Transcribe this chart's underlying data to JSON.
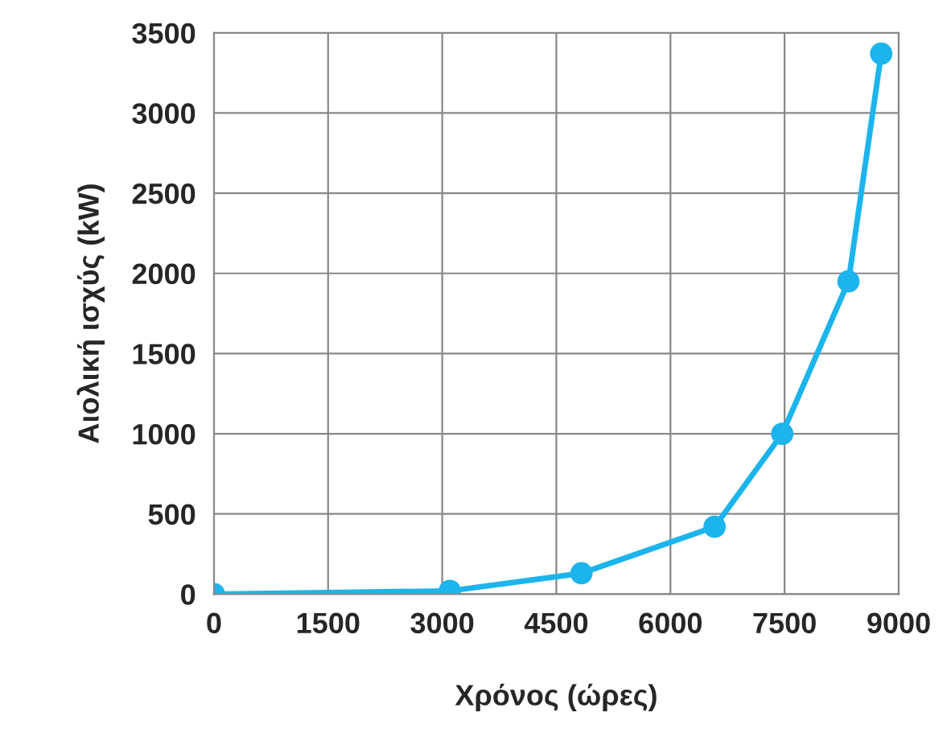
{
  "chart_data": {
    "type": "line",
    "xlabel": "Χρόνος (ώρες)",
    "ylabel": "Αιολική ισχύς (kW)",
    "x": [
      0,
      3100,
      4830,
      6580,
      7470,
      8340,
      8770
    ],
    "series": [
      {
        "color": "#1cb4ec",
        "values": [
          0,
          20,
          130,
          420,
          1000,
          1950,
          3370
        ]
      }
    ],
    "xlim": [
      0,
      9000
    ],
    "xticks": [
      0,
      1500,
      3000,
      4500,
      6000,
      7500,
      9000
    ],
    "ylim": [
      0,
      3500
    ],
    "yticks": [
      0,
      500,
      1000,
      1500,
      2000,
      2500,
      3000,
      3500
    ],
    "grid": true,
    "marker": "circle",
    "line_style": "solid"
  }
}
